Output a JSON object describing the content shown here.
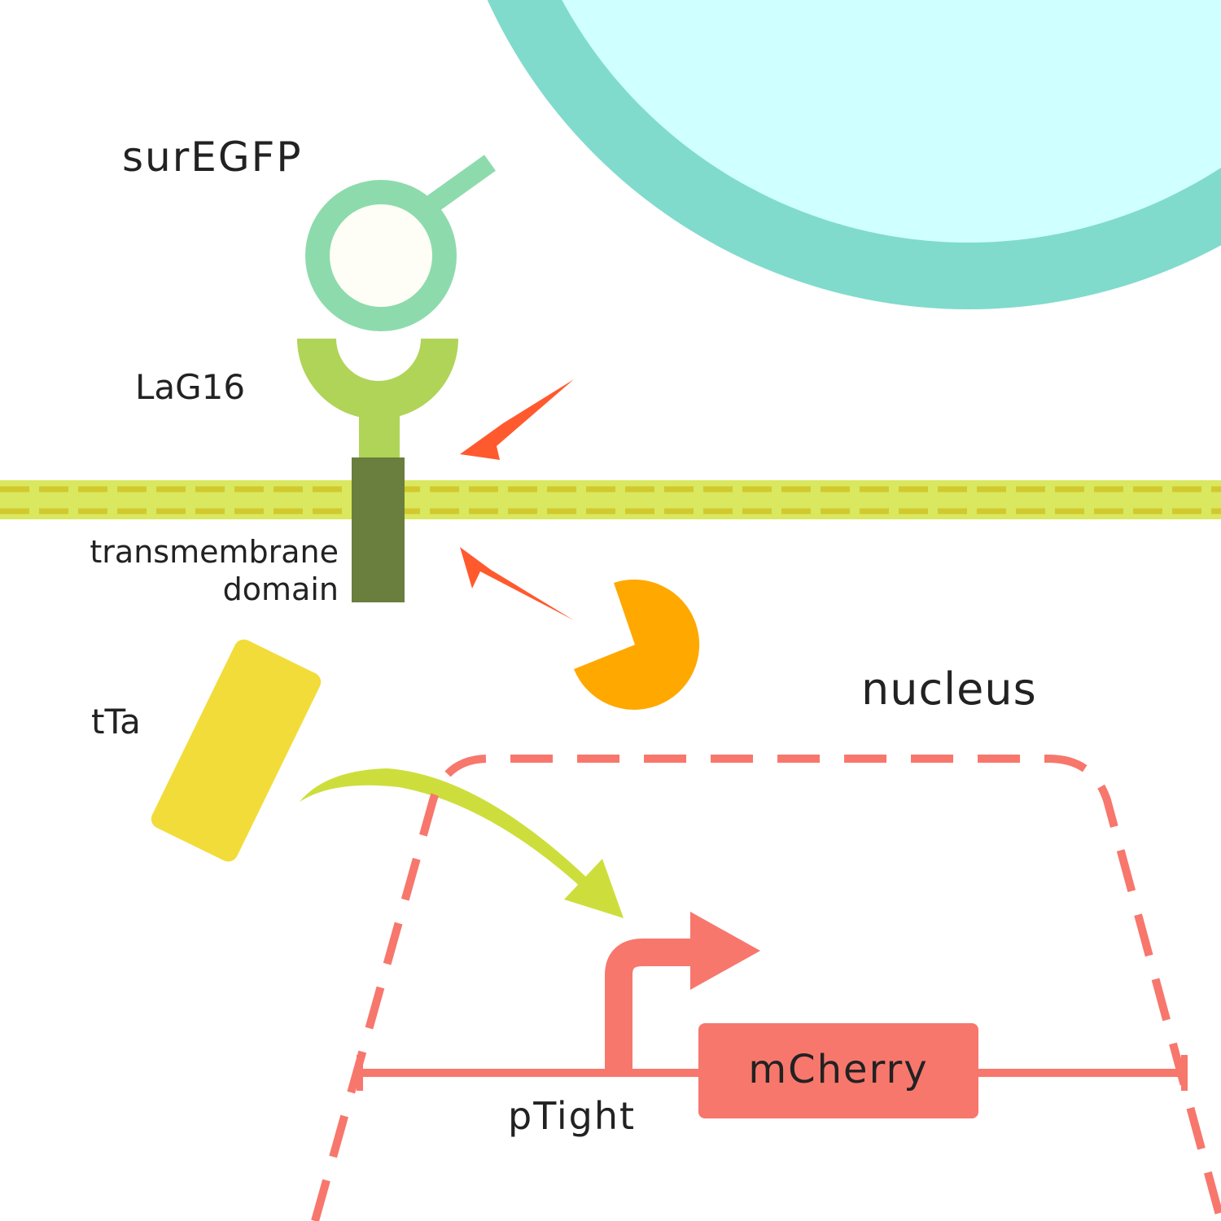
{
  "labels": {
    "surface_protein": "surEGFP",
    "nanobody": "LaG16",
    "transmembrane": "transmembrane domain",
    "transactivator": "tTa",
    "nucleus": "nucleus",
    "reporter_gene": "mCherry",
    "promoter": "pTight"
  },
  "colors": {
    "sender_cell_membrane": "#80DBCC",
    "sender_cell_interior": "#CFFFFF",
    "surEGFP": "#8DDBAC",
    "LaG16": "#B0D458",
    "transmembrane_domain": "#6A7E3E",
    "plasma_membrane": "#D9E85F",
    "membrane_dashes": "#D2C92E",
    "protease_arrows": "#FF5A2E",
    "protease": "#FFA800",
    "tTa": "#F2DC3A",
    "tTa_arrow": "#CDDE3C",
    "nucleus_and_gene": "#F7776C"
  },
  "icons": {
    "protease": "pacman-protease-icon",
    "cleavage_arrows": "cleavage-arrow-icon",
    "transcription_start": "bent-arrow-icon"
  }
}
